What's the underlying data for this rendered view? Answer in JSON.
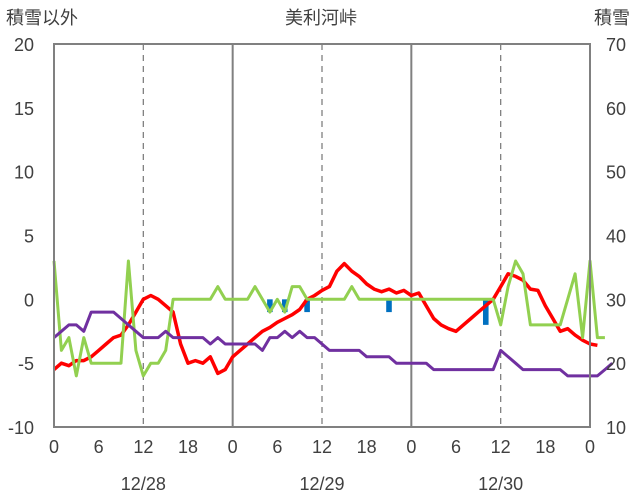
{
  "chart_data": {
    "type": "line",
    "title": "美利河峠",
    "left_axis_label": "積雪以外",
    "right_axis_label": "積雪",
    "ylim_left": [
      -10,
      20
    ],
    "ylim_right": [
      10,
      70
    ],
    "y_ticks_left": [
      "20",
      "15",
      "10",
      "5",
      "0",
      "-5",
      "-10"
    ],
    "y_ticks_right": [
      "70",
      "60",
      "50",
      "40",
      "30",
      "20",
      "10"
    ],
    "x_tick_labels": [
      "0",
      "6",
      "12",
      "18",
      "0",
      "6",
      "12",
      "18",
      "0",
      "6",
      "12",
      "18",
      "0"
    ],
    "date_labels": [
      "12/28",
      "12/29",
      "12/30"
    ],
    "grid": true,
    "colors": {
      "red": "#ff0000",
      "green": "#92d050",
      "purple": "#7030a0",
      "bar": "#0070c0",
      "axis": "#808080"
    },
    "series": [
      {
        "color": "red",
        "axis": "left",
        "values": [
          -5.5,
          -5.0,
          -5.2,
          -4.8,
          -4.8,
          -4.5,
          -4.0,
          -3.5,
          -3.0,
          -2.8,
          -2.0,
          -1.0,
          0.0,
          0.3,
          0.0,
          -0.5,
          -1.0,
          -3.5,
          -5.0,
          -4.8,
          -5.0,
          -4.5,
          -5.8,
          -5.5,
          -4.5,
          -4.0,
          -3.5,
          -3.0,
          -2.5,
          -2.2,
          -1.8,
          -1.5,
          -1.2,
          -0.8,
          0.0,
          0.3,
          0.7,
          1.0,
          2.2,
          2.8,
          2.2,
          1.8,
          1.2,
          0.8,
          0.6,
          0.8,
          0.5,
          0.7,
          0.3,
          0.5,
          -0.5,
          -1.5,
          -2.0,
          -2.3,
          -2.5,
          -2.0,
          -1.5,
          -1.0,
          -0.5,
          0.0,
          1.0,
          2.0,
          1.8,
          1.5,
          0.8,
          0.7,
          -0.5,
          -1.5,
          -2.5,
          -2.3,
          -2.8,
          -3.2,
          -3.5,
          -3.6
        ]
      },
      {
        "color": "green",
        "axis": "left",
        "values": [
          3.0,
          -4.0,
          -3.0,
          -6.0,
          -3.0,
          -5.0,
          -5.0,
          -5.0,
          -5.0,
          -5.0,
          3.0,
          -4.0,
          -6.0,
          -5.0,
          -5.0,
          -4.0,
          0.0,
          0.0,
          0.0,
          0.0,
          0.0,
          0.0,
          1.0,
          0.0,
          0.0,
          0.0,
          0.0,
          1.0,
          0.0,
          -1.0,
          0.0,
          -1.0,
          1.0,
          1.0,
          0.0,
          0.0,
          0.0,
          0.0,
          0.0,
          0.0,
          1.0,
          0.0,
          0.0,
          0.0,
          0.0,
          0.0,
          0.0,
          0.0,
          0.0,
          0.0,
          0.0,
          0.0,
          0.0,
          0.0,
          0.0,
          0.0,
          0.0,
          0.0,
          0.0,
          0.0,
          -2.0,
          1.0,
          3.0,
          2.0,
          -2.0,
          -2.0,
          -2.0,
          -2.0,
          -2.0,
          0.0,
          2.0,
          -3.0,
          3.0,
          -3.0,
          -3.0
        ]
      },
      {
        "color": "purple",
        "axis": "left",
        "values": [
          -3.0,
          -2.5,
          -2.0,
          -2.0,
          -2.5,
          -1.0,
          -1.0,
          -1.0,
          -1.0,
          -1.5,
          -2.0,
          -2.5,
          -3.0,
          -3.0,
          -3.0,
          -2.5,
          -3.0,
          -3.0,
          -3.0,
          -3.0,
          -3.0,
          -3.5,
          -3.0,
          -3.5,
          -3.5,
          -3.5,
          -3.5,
          -3.5,
          -4.0,
          -3.0,
          -3.0,
          -2.5,
          -3.0,
          -2.5,
          -3.0,
          -3.0,
          -3.5,
          -4.0,
          -4.0,
          -4.0,
          -4.0,
          -4.0,
          -4.5,
          -4.5,
          -4.5,
          -4.5,
          -5.0,
          -5.0,
          -5.0,
          -5.0,
          -5.0,
          -5.5,
          -5.5,
          -5.5,
          -5.5,
          -5.5,
          -5.5,
          -5.5,
          -5.5,
          -5.5,
          -4.0,
          -4.5,
          -5.0,
          -5.5,
          -5.5,
          -5.5,
          -5.5,
          -5.5,
          -5.5,
          -6.0,
          -6.0,
          -6.0,
          -6.0,
          -6.0,
          -5.5,
          -5.0
        ]
      }
    ],
    "bars": {
      "color": "bar",
      "axis": "left",
      "points": [
        {
          "x": 29,
          "value": -1.0
        },
        {
          "x": 31,
          "value": -1.0
        },
        {
          "x": 34,
          "value": -1.0
        },
        {
          "x": 45,
          "value": -1.0
        },
        {
          "x": 58,
          "value": -2.0
        }
      ]
    }
  }
}
